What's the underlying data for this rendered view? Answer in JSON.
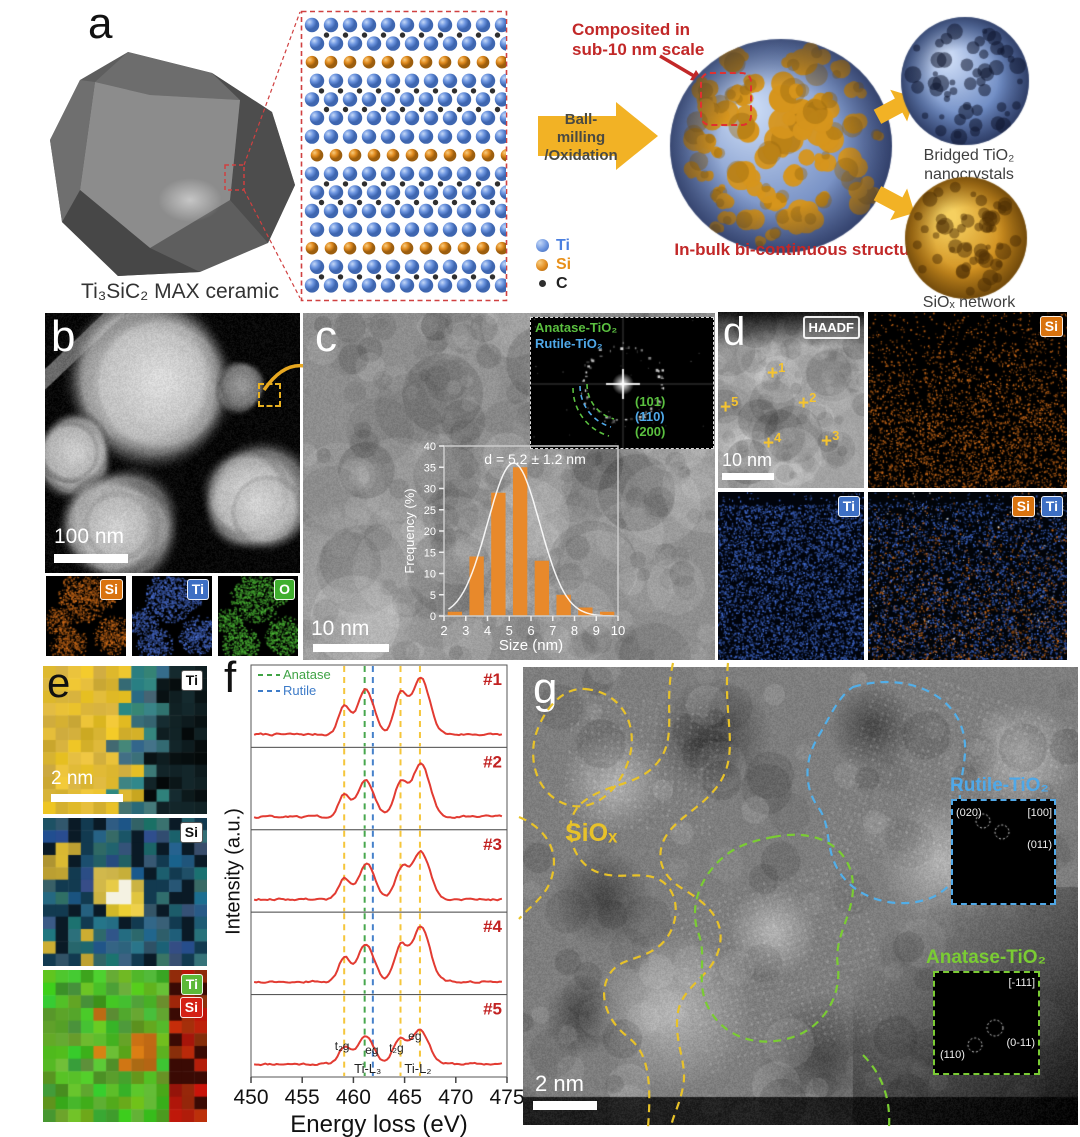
{
  "accent_colors": {
    "red": "#C22828",
    "yellow_arrow": "#F2B225",
    "si_orange": "#D9730F",
    "ti_blue": "#3D6FC4",
    "o_green": "#3FAF2E",
    "anatase_green": "#3FA345",
    "rutile_blue": "#3D7BC8",
    "siox_yellow": "#E8C229",
    "eels_red": "#E23B32"
  },
  "panel_a": {
    "label": "a",
    "ceramic_caption": "Ti₃SiC₂ MAX ceramic",
    "zoom_note_line1": "Composited in",
    "zoom_note_line2": "sub-10 nm scale",
    "process_line1": "Ball-milling",
    "process_line2": "/Oxidation",
    "structure_caption": "In-bulk bi-continuous structure",
    "product_top_line1": "Bridged TiO₂",
    "product_top_line2": "nanocrystals",
    "product_bottom": "SiOₓ network",
    "legend": [
      {
        "symbol": "Ti",
        "color": "#4A7FE0"
      },
      {
        "symbol": "Si",
        "color": "#E8901A"
      },
      {
        "symbol": "C",
        "color": "#222222"
      }
    ]
  },
  "panel_b": {
    "label": "b",
    "scale_bar": "100 nm",
    "maps": [
      {
        "label": "Si",
        "color": "#D9730F"
      },
      {
        "label": "Ti",
        "color": "#3D6FC4"
      },
      {
        "label": "O",
        "color": "#3FAF2E"
      }
    ]
  },
  "panel_c": {
    "label": "c",
    "scale_bar": "10 nm",
    "fft": {
      "phase1": {
        "name": "Anatase-TiO₂",
        "color": "#5ABF3F"
      },
      "phase2": {
        "name": "Rutile-TiO₂",
        "color": "#4FA8E8"
      },
      "rings": [
        {
          "label": "(101)",
          "color": "#5ABF3F"
        },
        {
          "label": "(110)",
          "color": "#4FA8E8"
        },
        {
          "label": "(200)",
          "color": "#5ABF3F"
        }
      ]
    }
  },
  "panel_d": {
    "label": "d",
    "image_label": "HAADF",
    "scale_bar": "10 nm",
    "markers": [
      "1",
      "2",
      "3",
      "4",
      "5"
    ],
    "map_si": "Si",
    "map_ti": "Ti",
    "map_overlay": [
      "Si",
      "Ti"
    ]
  },
  "panel_e": {
    "label": "e",
    "scale_bar": "2 nm",
    "map1_badge": "Ti",
    "map2_badge": "Si",
    "map3_badges": [
      {
        "text": "Ti",
        "bg": "#5CB838"
      },
      {
        "text": "Si",
        "bg": "#D42015"
      }
    ]
  },
  "panel_f": {
    "label": "f",
    "ylabel": "Intensity (a.u.)",
    "xlabel": "Energy loss (eV)"
  },
  "panel_g": {
    "label": "g",
    "scale_bar": "2 nm",
    "region_label": "SiOₓ",
    "rutile": {
      "title": "Rutile-TiO₂",
      "spot_labels": [
        "(020)",
        "[100]",
        "(011)"
      ]
    },
    "anatase": {
      "title": "Anatase-TiO₂",
      "spot_labels": [
        "[-111]",
        "(0-11)",
        "(110)"
      ]
    }
  },
  "chart_data": [
    {
      "id": "size_histogram",
      "type": "bar",
      "title": "d = 5.2 ± 1.2 nm",
      "xlabel": "Size (nm)",
      "ylabel": "Frequency (%)",
      "xlim": [
        2,
        10
      ],
      "ylim": [
        0,
        40
      ],
      "xticks": [
        2,
        3,
        4,
        5,
        6,
        7,
        8,
        9,
        10
      ],
      "yticks": [
        0,
        5,
        10,
        15,
        20,
        25,
        30,
        35,
        40
      ],
      "bin_centers": [
        2.5,
        3.5,
        4.5,
        5.5,
        6.5,
        7.5,
        8.5,
        9.5
      ],
      "values": [
        1,
        14,
        29,
        35,
        13,
        5,
        2,
        1
      ],
      "fit": {
        "type": "gaussian",
        "mean": 5.2,
        "sd": 1.2,
        "peak": 36
      },
      "bar_color": "#E8892B",
      "line_color": "#FFFFFF"
    },
    {
      "id": "eels_spectra",
      "type": "line",
      "xlabel": "Energy loss (eV)",
      "ylabel": "Intensity (a.u.)",
      "xlim": [
        450,
        475
      ],
      "xticks": [
        450,
        455,
        460,
        465,
        470,
        475
      ],
      "line_color": "#E23B32",
      "legend": [
        {
          "label": "Anatase",
          "color": "#3FA345"
        },
        {
          "label": "Rutile",
          "color": "#3D7BC8"
        }
      ],
      "ref_lines": [
        {
          "x": 459.1,
          "color": "#F5C431"
        },
        {
          "x": 461.1,
          "color": "#3FA345"
        },
        {
          "x": 461.9,
          "color": "#3D7BC8"
        },
        {
          "x": 464.6,
          "color": "#F5C431"
        },
        {
          "x": 466.5,
          "color": "#F5C431"
        }
      ],
      "series": [
        {
          "label": "#1",
          "peaks": [
            {
              "x": 459.1,
              "h": 0.5
            },
            {
              "x": 461.2,
              "h": 0.8
            },
            {
              "x": 464.6,
              "h": 0.7
            },
            {
              "x": 466.6,
              "h": 1.0
            }
          ]
        },
        {
          "label": "#2",
          "peaks": [
            {
              "x": 459.1,
              "h": 0.4
            },
            {
              "x": 461.2,
              "h": 0.66
            },
            {
              "x": 464.6,
              "h": 0.6
            },
            {
              "x": 466.6,
              "h": 0.95
            }
          ]
        },
        {
          "label": "#3",
          "peaks": [
            {
              "x": 459.1,
              "h": 0.36
            },
            {
              "x": 461.3,
              "h": 0.62
            },
            {
              "x": 464.7,
              "h": 0.52
            },
            {
              "x": 466.6,
              "h": 0.85
            }
          ]
        },
        {
          "label": "#4",
          "peaks": [
            {
              "x": 459.1,
              "h": 0.42
            },
            {
              "x": 461.2,
              "h": 0.68
            },
            {
              "x": 464.6,
              "h": 0.62
            },
            {
              "x": 466.6,
              "h": 0.98
            }
          ]
        },
        {
          "label": "#5",
          "peaks": [
            {
              "x": 459.1,
              "h": 0.3
            },
            {
              "x": 461.2,
              "h": 0.5
            },
            {
              "x": 464.5,
              "h": 0.44
            },
            {
              "x": 466.5,
              "h": 0.62
            }
          ]
        }
      ],
      "annotations": {
        "peak_labels": [
          {
            "text": "t₂g",
            "x": 458.9
          },
          {
            "text": "eg",
            "x": 461.8
          },
          {
            "text": "t₂g",
            "x": 464.2
          },
          {
            "text": "eg",
            "x": 466.0
          }
        ],
        "edge_labels": [
          {
            "text": "Ti-L₃",
            "x": 461.4
          },
          {
            "text": "Ti-L₂",
            "x": 466.3
          }
        ]
      }
    }
  ]
}
